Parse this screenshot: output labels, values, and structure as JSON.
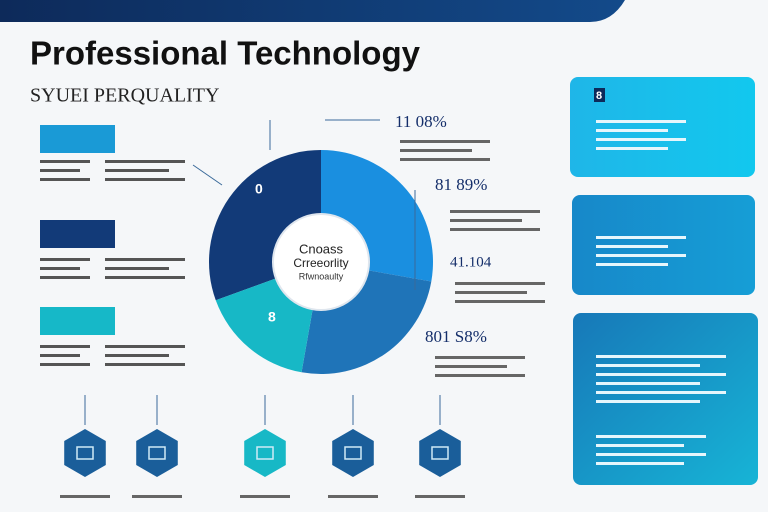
{
  "header": {
    "title": "Professional Technology",
    "subtitle": "SYUEI PERQUALITY"
  },
  "donut": {
    "center_lines": [
      "Cnoass",
      "Crreeorlity",
      "Rfwnoaulty"
    ],
    "segment_labels": [
      "0",
      "8"
    ]
  },
  "stats": [
    "11 08%",
    "81 89%",
    "41.104",
    "801 S8%"
  ],
  "cards": [
    {
      "badge": "8"
    }
  ]
}
